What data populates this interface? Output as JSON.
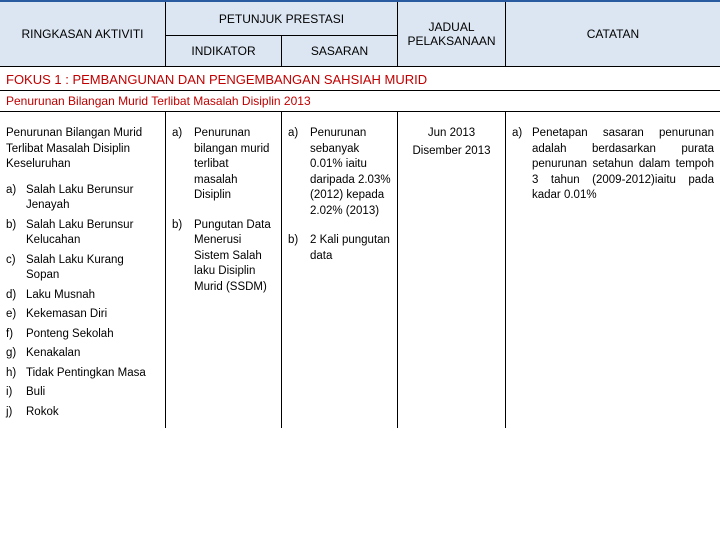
{
  "colors": {
    "header_bg": "#dce6f2",
    "border_top": "#2a5a9f",
    "focus_text": "#c00000"
  },
  "header": {
    "aktiviti": "RINGKASAN AKTIVITI",
    "petunjuk": "PETUNJUK PRESTASI",
    "indikator": "INDIKATOR",
    "sasaran": "SASARAN",
    "jadual": "JADUAL PELAKSANAAN",
    "catatan": "CATATAN"
  },
  "fokus": "FOKUS 1 : PEMBANGUNAN DAN PENGEMBANGAN SAHSIAH MURID",
  "subtitle": "Penurunan Bilangan Murid Terlibat Masalah Disiplin 2013",
  "aktiviti": {
    "intro": "Penurunan Bilangan Murid Terlibat Masalah Disiplin Keseluruhan",
    "items": [
      {
        "m": "a)",
        "t": "Salah Laku Berunsur Jenayah"
      },
      {
        "m": "b)",
        "t": "Salah Laku Berunsur Kelucahan"
      },
      {
        "m": "c)",
        "t": "Salah Laku Kurang Sopan"
      },
      {
        "m": "d)",
        "t": "Laku Musnah"
      },
      {
        "m": "e)",
        "t": "Kekemasan Diri"
      },
      {
        "m": "f)",
        "t": "Ponteng Sekolah"
      },
      {
        "m": "g)",
        "t": "Kenakalan"
      },
      {
        "m": "h)",
        "t": "Tidak Pentingkan Masa"
      },
      {
        "m": "i)",
        "t": "Buli"
      },
      {
        "m": "j)",
        "t": "Rokok"
      }
    ]
  },
  "indikator": {
    "a": {
      "m": "a)",
      "t": "Penurunan bilangan murid terlibat masalah Disiplin"
    },
    "b": {
      "m": "b)",
      "t": "Pungutan Data Menerusi Sistem Salah laku Disiplin Murid (SSDM)"
    }
  },
  "sasaran": {
    "a": {
      "m": "a)",
      "t": "Penurunan sebanyak 0.01% iaitu daripada 2.03% (2012) kepada 2.02% (2013)"
    },
    "b": {
      "m": "b)",
      "t": "2 Kali pungutan data"
    }
  },
  "jadual": {
    "line1": "Jun 2013",
    "line2": "Disember 2013"
  },
  "catatan": {
    "a": {
      "m": "a)",
      "t": "Penetapan sasaran penurunan adalah berdasarkan purata penurunan setahun dalam tempoh 3 tahun (2009-2012)iaitu pada kadar 0.01%"
    }
  }
}
